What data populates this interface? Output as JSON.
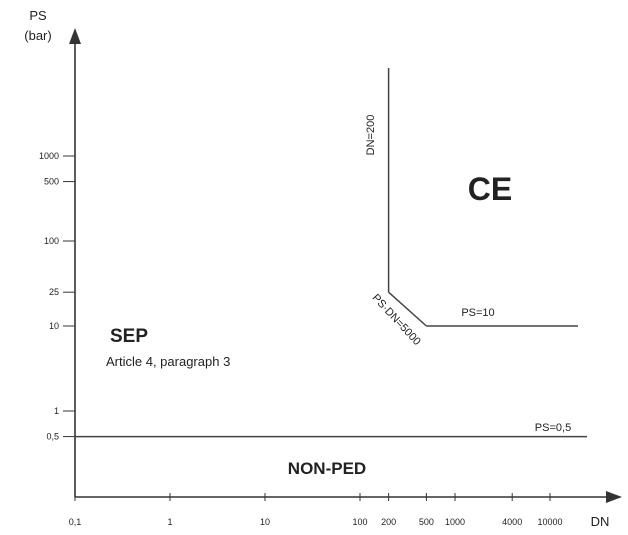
{
  "chart_data": {
    "type": "line",
    "y_axis_title": [
      "PS",
      "(bar)"
    ],
    "x_axis_title": "DN",
    "x_scale": "log",
    "y_scale": "log",
    "x_ticks": [
      {
        "value": 0.1,
        "label": "0,1"
      },
      {
        "value": 1,
        "label": "1"
      },
      {
        "value": 10,
        "label": "10"
      },
      {
        "value": 100,
        "label": "100"
      },
      {
        "value": 200,
        "label": "200"
      },
      {
        "value": 500,
        "label": "500"
      },
      {
        "value": 1000,
        "label": "1000"
      },
      {
        "value": 4000,
        "label": "4000"
      },
      {
        "value": 10000,
        "label": "10000"
      }
    ],
    "y_ticks": [
      {
        "value": 0.5,
        "label": "0,5"
      },
      {
        "value": 1,
        "label": "1"
      },
      {
        "value": 10,
        "label": "10"
      },
      {
        "value": 25,
        "label": "25"
      },
      {
        "value": 100,
        "label": "100"
      },
      {
        "value": 500,
        "label": "500"
      },
      {
        "value": 1000,
        "label": "1000"
      }
    ],
    "boundary_lines": [
      {
        "label": "PS=0,5",
        "points": [
          [
            0.1,
            0.5
          ],
          [
            50000,
            0.5
          ]
        ]
      },
      {
        "label": "DN=200",
        "points": [
          [
            200,
            25
          ],
          [
            200,
            50000
          ]
        ]
      },
      {
        "label": "PS·DN=5000",
        "points": [
          [
            200,
            25
          ],
          [
            500,
            10
          ]
        ]
      },
      {
        "label": "PS=10",
        "points": [
          [
            500,
            10
          ],
          [
            30000,
            10
          ]
        ]
      }
    ],
    "regions": {
      "sep_title": "SEP",
      "sep_subtitle": "Article 4, paragraph 3",
      "non_ped": "NON-PED",
      "ce_mark": "CE"
    }
  }
}
